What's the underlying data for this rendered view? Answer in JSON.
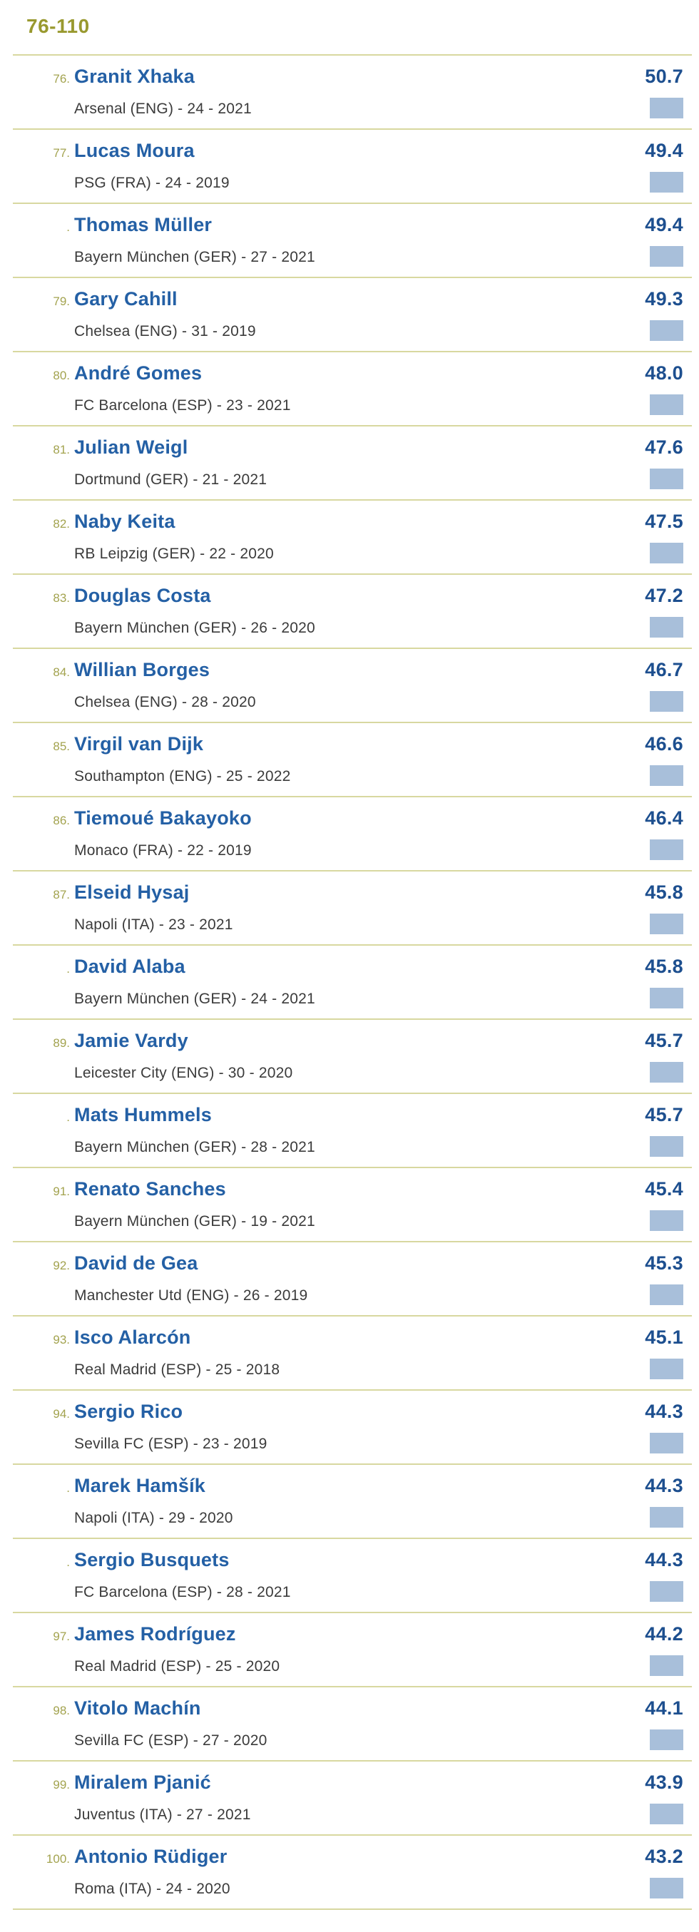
{
  "header": {
    "title": "76-110"
  },
  "colors": {
    "background": "#ffffff",
    "title": "#99992f",
    "rank": "#a3a34f",
    "name": "#2460a5",
    "score": "#1d4f8f",
    "club": "#3b3b3b",
    "divider": "#d8d8a0",
    "square": "#a8bfda"
  },
  "players": [
    {
      "rank": "76.",
      "name": "Granit Xhaka",
      "club_line": "Arsenal (ENG) - 24 - 2021",
      "score": "50.7"
    },
    {
      "rank": "77.",
      "name": "Lucas Moura",
      "club_line": "PSG (FRA) - 24 - 2019",
      "score": "49.4"
    },
    {
      "rank": ".",
      "name": "Thomas Müller",
      "club_line": "Bayern München (GER) - 27 - 2021",
      "score": "49.4"
    },
    {
      "rank": "79.",
      "name": "Gary Cahill",
      "club_line": "Chelsea (ENG) - 31 - 2019",
      "score": "49.3"
    },
    {
      "rank": "80.",
      "name": "André Gomes",
      "club_line": "FC Barcelona (ESP) - 23 - 2021",
      "score": "48.0"
    },
    {
      "rank": "81.",
      "name": "Julian Weigl",
      "club_line": "Dortmund (GER) - 21 - 2021",
      "score": "47.6"
    },
    {
      "rank": "82.",
      "name": "Naby Keita",
      "club_line": "RB Leipzig (GER) - 22 - 2020",
      "score": "47.5"
    },
    {
      "rank": "83.",
      "name": "Douglas Costa",
      "club_line": "Bayern München (GER) - 26 - 2020",
      "score": "47.2"
    },
    {
      "rank": "84.",
      "name": "Willian Borges",
      "club_line": "Chelsea (ENG) - 28 - 2020",
      "score": "46.7"
    },
    {
      "rank": "85.",
      "name": "Virgil van Dijk",
      "club_line": "Southampton (ENG) - 25 - 2022",
      "score": "46.6"
    },
    {
      "rank": "86.",
      "name": "Tiemoué Bakayoko",
      "club_line": "Monaco (FRA) - 22 - 2019",
      "score": "46.4"
    },
    {
      "rank": "87.",
      "name": "Elseid Hysaj",
      "club_line": "Napoli (ITA) - 23 - 2021",
      "score": "45.8"
    },
    {
      "rank": ".",
      "name": "David Alaba",
      "club_line": "Bayern München (GER) - 24 - 2021",
      "score": "45.8"
    },
    {
      "rank": "89.",
      "name": "Jamie Vardy",
      "club_line": "Leicester City (ENG) - 30 - 2020",
      "score": "45.7"
    },
    {
      "rank": ".",
      "name": "Mats Hummels",
      "club_line": "Bayern München (GER) - 28 - 2021",
      "score": "45.7"
    },
    {
      "rank": "91.",
      "name": "Renato Sanches",
      "club_line": "Bayern München (GER) - 19 - 2021",
      "score": "45.4"
    },
    {
      "rank": "92.",
      "name": "David de Gea",
      "club_line": "Manchester Utd (ENG) - 26 - 2019",
      "score": "45.3"
    },
    {
      "rank": "93.",
      "name": "Isco Alarcón",
      "club_line": "Real Madrid (ESP) - 25 - 2018",
      "score": "45.1"
    },
    {
      "rank": "94.",
      "name": "Sergio Rico",
      "club_line": "Sevilla FC (ESP) - 23 - 2019",
      "score": "44.3"
    },
    {
      "rank": ".",
      "name": "Marek Hamšík",
      "club_line": "Napoli (ITA) - 29 - 2020",
      "score": "44.3"
    },
    {
      "rank": ".",
      "name": "Sergio Busquets",
      "club_line": "FC Barcelona (ESP) - 28 - 2021",
      "score": "44.3"
    },
    {
      "rank": "97.",
      "name": "James Rodríguez",
      "club_line": "Real Madrid (ESP) - 25 - 2020",
      "score": "44.2"
    },
    {
      "rank": "98.",
      "name": "Vitolo Machín",
      "club_line": "Sevilla FC (ESP) - 27 - 2020",
      "score": "44.1"
    },
    {
      "rank": "99.",
      "name": "Miralem Pjanić",
      "club_line": "Juventus (ITA) - 27 - 2021",
      "score": "43.9"
    },
    {
      "rank": "100.",
      "name": "Antonio Rüdiger",
      "club_line": "Roma (ITA) - 24 - 2020",
      "score": "43.2"
    }
  ]
}
